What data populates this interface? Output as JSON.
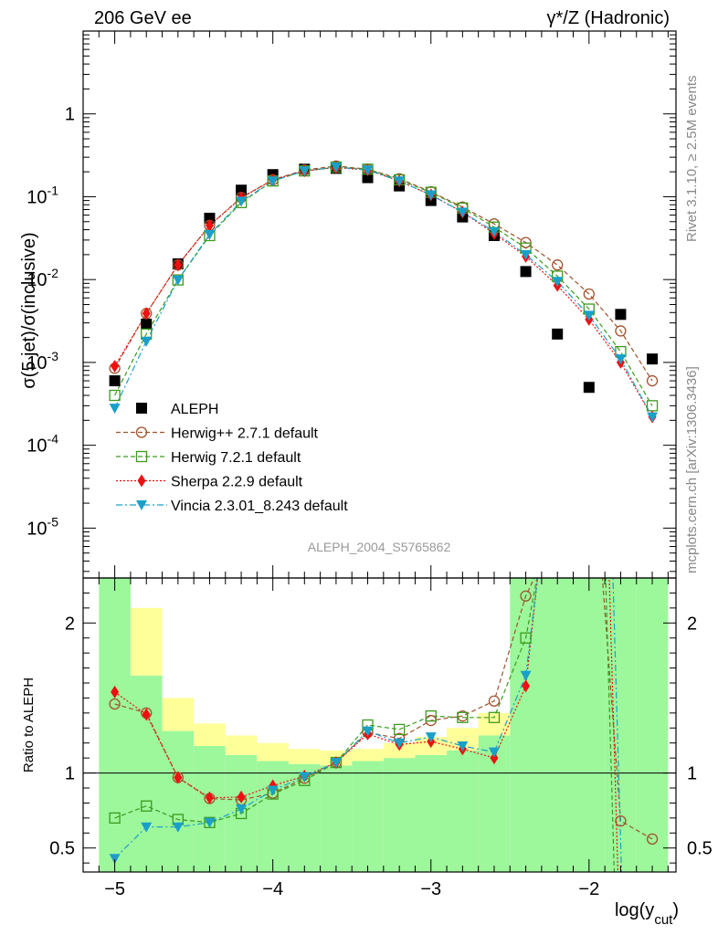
{
  "header": {
    "left": "206 GeV ee",
    "right": "γ*/Z (Hadronic)"
  },
  "side_labels": {
    "rivet": "Rivet 3.1.10, ≥ 2.5M events",
    "mcplots": "mcplots.cern.ch [arXiv:1306.3436]"
  },
  "analysis_id": "ALEPH_2004_S5765862",
  "chart_data": [
    {
      "type": "scatter",
      "panel": "main",
      "ylabel": "σ(5 jet)/σ(inclusive)",
      "xlim": [
        -5.2,
        -1.45
      ],
      "ylim": [
        2.5e-06,
        10
      ],
      "yscale": "log",
      "ytick_labels": [
        "10^-5",
        "10^-4",
        "10^-3",
        "10^-2",
        "10^-1",
        "1"
      ],
      "legend_position": "middle-left",
      "x": [
        -5.0,
        -4.8,
        -4.6,
        -4.4,
        -4.2,
        -4.0,
        -3.8,
        -3.6,
        -3.4,
        -3.2,
        -3.0,
        -2.8,
        -2.6,
        -2.4,
        -2.2,
        -2.0,
        -1.8,
        -1.6
      ],
      "series": [
        {
          "name": "ALEPH",
          "color": "#000000",
          "marker": "square-filled",
          "line": "none",
          "values": [
            0.0006,
            0.0029,
            0.0155,
            0.055,
            0.12,
            0.185,
            0.215,
            0.22,
            0.17,
            0.135,
            0.09,
            0.057,
            0.034,
            0.0125,
            0.0022,
            0.0005,
            0.0038,
            0.0011
          ]
        },
        {
          "name": "Herwig++ 2.7.1 default",
          "color": "#a0522d",
          "marker": "circle-open",
          "line": "dashed",
          "values": [
            0.00085,
            0.0039,
            0.015,
            0.045,
            0.098,
            0.16,
            0.21,
            0.235,
            0.215,
            0.165,
            0.115,
            0.075,
            0.047,
            0.028,
            0.015,
            0.0067,
            0.0024,
            0.0006
          ]
        },
        {
          "name": "Herwig 7.2.1 default",
          "color": "#3c9a1e",
          "marker": "square-open",
          "line": "dashed",
          "values": [
            0.0004,
            0.0022,
            0.0099,
            0.034,
            0.085,
            0.155,
            0.205,
            0.228,
            0.215,
            0.16,
            0.113,
            0.073,
            0.043,
            0.024,
            0.011,
            0.0044,
            0.00135,
            0.0003
          ]
        },
        {
          "name": "Sherpa 2.2.9 default",
          "color": "#ee1111",
          "marker": "diamond-filled",
          "line": "dotted",
          "values": [
            0.0009,
            0.0039,
            0.015,
            0.045,
            0.097,
            0.16,
            0.205,
            0.225,
            0.21,
            0.155,
            0.105,
            0.065,
            0.036,
            0.019,
            0.0085,
            0.0033,
            0.001,
            0.00022
          ]
        },
        {
          "name": "Vincia 2.3.01_8.243 default",
          "color": "#1aa0c8",
          "marker": "triangle-down-filled",
          "line": "dashdot",
          "values": [
            0.00028,
            0.0018,
            0.0099,
            0.035,
            0.088,
            0.155,
            0.205,
            0.228,
            0.21,
            0.155,
            0.105,
            0.065,
            0.038,
            0.02,
            0.0095,
            0.0037,
            0.0011,
            0.00022
          ]
        }
      ]
    },
    {
      "type": "scatter",
      "panel": "ratio",
      "ylabel": "Ratio to ALEPH",
      "xlabel": "log(y_cut)",
      "xlim": [
        -5.2,
        -1.45
      ],
      "ylim": [
        0.34,
        2.3
      ],
      "ytick_labels": [
        "0.5",
        "1",
        "2"
      ],
      "xtick_labels": [
        "−5",
        "−4",
        "−3",
        "−2"
      ],
      "x": [
        -5.0,
        -4.8,
        -4.6,
        -4.4,
        -4.2,
        -4.0,
        -3.8,
        -3.6,
        -3.4,
        -3.2,
        -3.0,
        -2.8,
        -2.6,
        -2.4,
        -2.2,
        -2.0,
        -1.8,
        -1.6
      ],
      "band_edges": [
        -5.1,
        -4.9,
        -4.7,
        -4.5,
        -4.3,
        -4.1,
        -3.9,
        -3.7,
        -3.5,
        -3.3,
        -3.1,
        -2.9,
        -2.7,
        -2.5,
        -2.3,
        -2.1,
        -1.9,
        -1.7,
        -1.5
      ],
      "stat_band": {
        "color": "#9df79b",
        "lo": [
          0.34,
          0.34,
          0.34,
          0.34,
          0.34,
          0.34,
          0.34,
          0.34,
          0.34,
          0.34,
          0.34,
          0.34,
          0.34,
          0.34,
          0.34,
          0.34,
          0.34,
          0.34
        ],
        "hi": [
          2.3,
          1.65,
          1.28,
          1.18,
          1.12,
          1.08,
          1.06,
          1.05,
          1.08,
          1.1,
          1.12,
          1.15,
          1.25,
          2.3,
          2.3,
          2.3,
          2.3,
          2.3
        ]
      },
      "sys_band": {
        "color": "#ffff99",
        "lo": [
          0.34,
          0.38,
          0.6,
          0.58,
          0.66,
          0.78,
          0.85,
          0.9,
          0.88,
          0.86,
          0.84,
          0.78,
          0.68,
          0.34,
          0.34,
          0.34,
          0.34,
          0.34
        ],
        "hi": [
          2.3,
          2.1,
          1.5,
          1.33,
          1.25,
          1.2,
          1.16,
          1.15,
          1.16,
          1.2,
          1.24,
          1.3,
          1.4,
          2.3,
          2.3,
          2.3,
          2.3,
          2.3
        ]
      },
      "series": [
        {
          "name": "Herwig++ 2.7.1 default",
          "color": "#a0522d",
          "marker": "circle-open",
          "line": "dashed",
          "values": [
            1.46,
            1.4,
            0.97,
            0.83,
            0.82,
            0.865,
            0.965,
            1.07,
            1.27,
            1.23,
            1.35,
            1.38,
            1.48,
            2.18,
            null,
            null,
            0.68,
            0.56
          ]
        },
        {
          "name": "Herwig 7.2.1 default",
          "color": "#3c9a1e",
          "marker": "square-open",
          "line": "dashed",
          "values": [
            0.7,
            0.78,
            0.69,
            0.67,
            0.73,
            0.86,
            0.95,
            1.07,
            1.32,
            1.29,
            1.38,
            1.37,
            1.37,
            1.9,
            null,
            null,
            null,
            null
          ]
        },
        {
          "name": "Sherpa 2.2.9 default",
          "color": "#ee1111",
          "marker": "diamond-filled",
          "line": "dotted",
          "values": [
            1.54,
            1.39,
            0.97,
            0.835,
            0.84,
            0.915,
            0.98,
            1.07,
            1.26,
            1.19,
            1.21,
            1.16,
            1.1,
            1.58,
            null,
            null,
            null,
            null
          ]
        },
        {
          "name": "Vincia 2.3.01_8.243 default",
          "color": "#1aa0c8",
          "marker": "triangle-down-filled",
          "line": "dashdot",
          "values": [
            0.43,
            0.64,
            0.64,
            0.67,
            0.76,
            0.885,
            0.975,
            1.07,
            1.28,
            1.2,
            1.24,
            1.18,
            1.14,
            1.65,
            null,
            null,
            null,
            null
          ]
        }
      ]
    }
  ]
}
